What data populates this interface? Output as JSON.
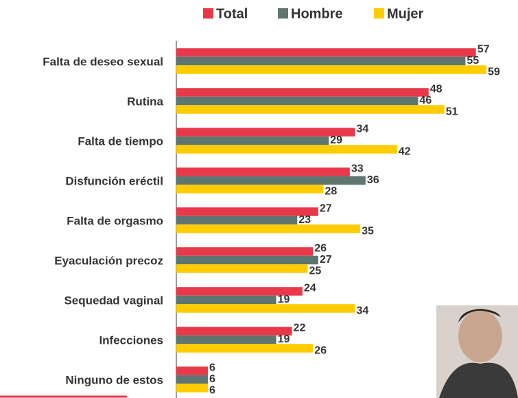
{
  "chart_data": {
    "type": "bar",
    "orientation": "horizontal",
    "categories": [
      "Falta de deseo sexual",
      "Rutina",
      "Falta de tiempo",
      "Disfunción eréctil",
      "Falta de orgasmo",
      "Eyaculación precoz",
      "Sequedad vaginal",
      "Infecciones",
      "Ninguno de estos"
    ],
    "series": [
      {
        "name": "Total",
        "color": "#e8394a",
        "values": [
          57,
          48,
          34,
          33,
          27,
          26,
          24,
          22,
          6
        ]
      },
      {
        "name": "Hombre",
        "color": "#5f7570",
        "values": [
          55,
          46,
          29,
          36,
          23,
          27,
          19,
          19,
          6
        ]
      },
      {
        "name": "Mujer",
        "color": "#ffcc00",
        "values": [
          59,
          51,
          42,
          28,
          35,
          25,
          34,
          26,
          6
        ]
      }
    ],
    "xlim": [
      0,
      65
    ],
    "legend": "top"
  }
}
